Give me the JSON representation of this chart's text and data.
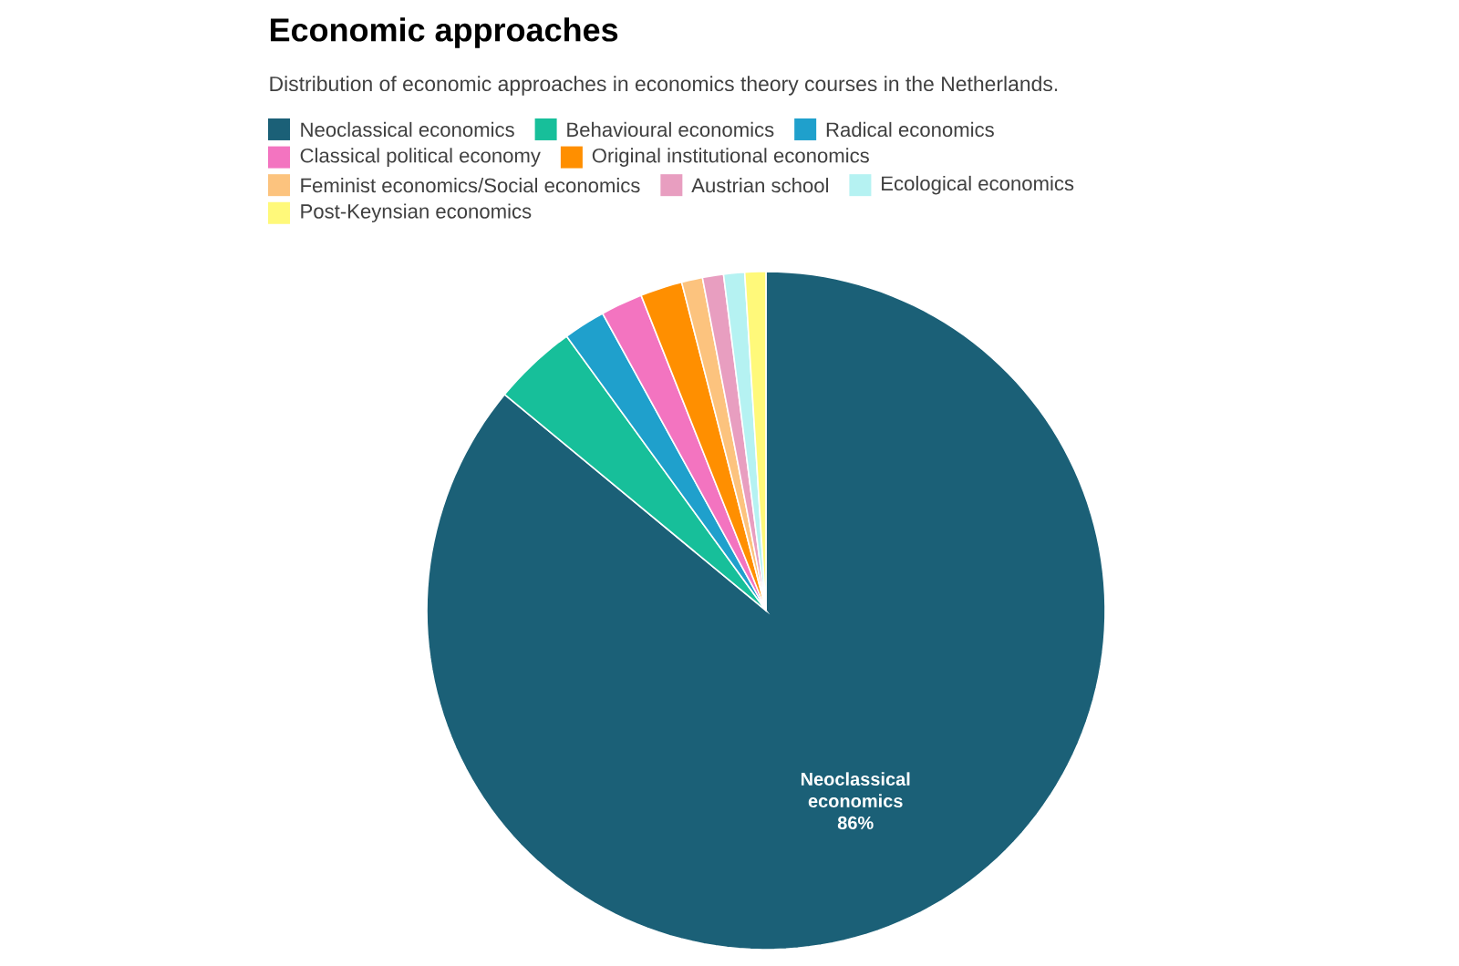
{
  "chart_data": {
    "type": "pie",
    "title": "Economic approaches",
    "subtitle": "Distribution of economic approaches in economics theory courses in the Netherlands.",
    "categories": [
      "Neoclassical economics",
      "Behavioural economics",
      "Radical economics",
      "Classical political economy",
      "Original institutional economics",
      "Feminist economics/Social economics",
      "Austrian school",
      "Ecological economics",
      "Post-Keynsian economics"
    ],
    "values": [
      86,
      4,
      2,
      2,
      2,
      1,
      1,
      1,
      1
    ],
    "colors": [
      "#1b6077",
      "#17bf9a",
      "#1fa0cc",
      "#f374c0",
      "#ff8f00",
      "#fcc37e",
      "#e89ec0",
      "#b5f2f2",
      "#fff97a"
    ],
    "value_labels": [
      "86%",
      null,
      null,
      null,
      null,
      null,
      null,
      null,
      null
    ],
    "legend": "top"
  }
}
